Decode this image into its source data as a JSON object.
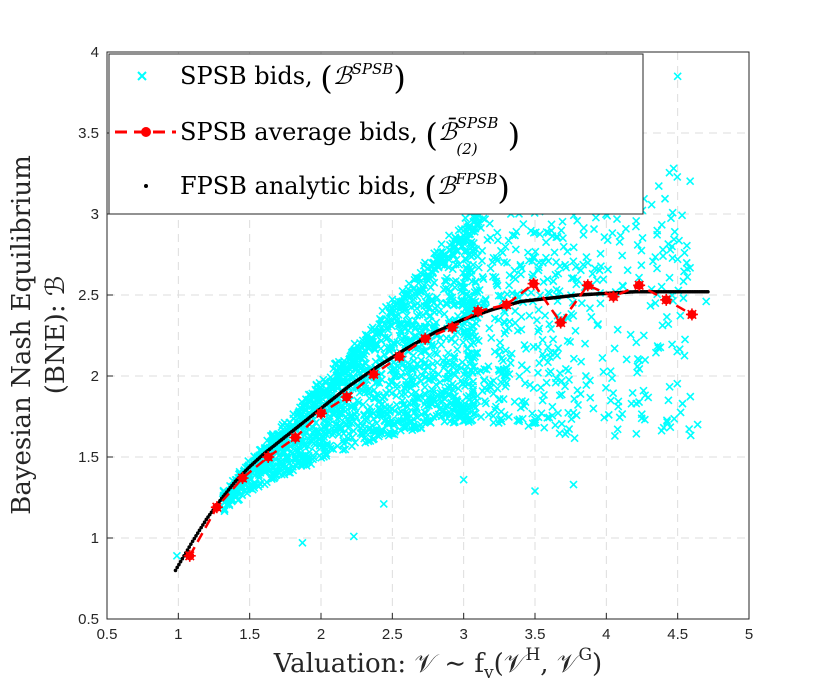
{
  "chart_data": {
    "type": "scatter",
    "xlabel": "Valuation: 𝒱 ∼ f",
    "xlabel_sub": "v",
    "xlabel_args": "(𝒱",
    "xlabel_sup_H": "H",
    "xlabel_mid": ", 𝒱",
    "xlabel_sup_G": "G",
    "xlabel_end": ")",
    "ylabel_line1": "Bayesian Nash Equilibrium",
    "ylabel_line2": "(BNE): ℬ",
    "xlim": [
      0.5,
      5
    ],
    "ylim": [
      0.5,
      4
    ],
    "x_ticks": [
      "0.5",
      "1",
      "1.5",
      "2",
      "2.5",
      "3",
      "3.5",
      "4",
      "4.5",
      "5"
    ],
    "y_ticks": [
      "0.5",
      "1",
      "1.5",
      "2",
      "2.5",
      "3",
      "3.5",
      "4"
    ],
    "grid": true,
    "legend_position": "top-left",
    "legend": [
      {
        "label": "SPSB bids, ",
        "math": "ℬ",
        "sup": "SPSB",
        "sub": "",
        "marker": "x",
        "color": "#00FFFF"
      },
      {
        "label": "SPSB average bids, ",
        "math": "ℬ̄",
        "sup": "SPSB",
        "sub": "(2)",
        "marker": "star-dashed",
        "color": "#FF0000"
      },
      {
        "label": "FPSB analytic bids, ",
        "math": "ℬ",
        "sup": "FPSB",
        "sub": "",
        "marker": "dot",
        "color": "#000000"
      }
    ],
    "series": [
      {
        "name": "SPSB bids",
        "note": "cloud of several thousand scatter points; representative sample",
        "color": "#00FFFF",
        "outliers": [
          [
            0.99,
            0.89
          ],
          [
            1.87,
            0.97
          ],
          [
            2.23,
            1.01
          ],
          [
            4.5,
            3.85
          ],
          [
            4.64,
            1.7
          ],
          [
            4.5,
            2.72
          ],
          [
            4.46,
            2.8
          ],
          [
            4.7,
            2.46
          ],
          [
            3.77,
            1.33
          ],
          [
            3.5,
            1.29
          ],
          [
            4.06,
            1.63
          ],
          [
            4.27,
            1.73
          ],
          [
            3.0,
            1.36
          ],
          [
            2.44,
            1.21
          ]
        ]
      },
      {
        "name": "SPSB average bids",
        "color": "#FF0000",
        "x": [
          1.08,
          1.27,
          1.45,
          1.63,
          1.82,
          2.0,
          2.18,
          2.37,
          2.55,
          2.73,
          2.92,
          3.1,
          3.3,
          3.49,
          3.68,
          3.87,
          4.05,
          4.23,
          4.42,
          4.6
        ],
        "y": [
          0.89,
          1.19,
          1.37,
          1.5,
          1.62,
          1.77,
          1.87,
          2.01,
          2.12,
          2.23,
          2.3,
          2.4,
          2.44,
          2.57,
          2.33,
          2.56,
          2.49,
          2.56,
          2.47,
          2.38
        ]
      },
      {
        "name": "FPSB analytic bids",
        "color": "#000000",
        "x": [
          0.98,
          1.1,
          1.2,
          1.3,
          1.4,
          1.5,
          1.6,
          1.7,
          1.8,
          1.9,
          2.0,
          2.2,
          2.4,
          2.6,
          2.8,
          3.0,
          3.2,
          3.4,
          3.6,
          3.8,
          4.0,
          4.2,
          4.4,
          4.6,
          4.72
        ],
        "y": [
          0.8,
          0.98,
          1.12,
          1.24,
          1.35,
          1.44,
          1.52,
          1.59,
          1.66,
          1.73,
          1.8,
          1.94,
          2.06,
          2.17,
          2.27,
          2.35,
          2.41,
          2.46,
          2.48,
          2.5,
          2.51,
          2.52,
          2.52,
          2.52,
          2.52
        ]
      }
    ]
  }
}
